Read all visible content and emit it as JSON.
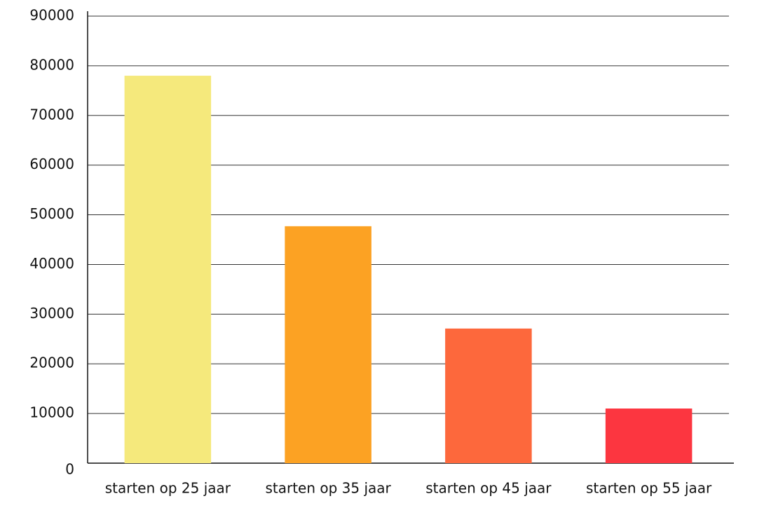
{
  "chart_data": {
    "type": "bar",
    "categories": [
      "starten op 25 jaar",
      "starten op 35 jaar",
      "starten op 45 jaar",
      "starten op 55 jaar"
    ],
    "values": [
      78000,
      47700,
      27100,
      11000
    ],
    "colors": [
      "#f5e97c",
      "#fca223",
      "#fd683c",
      "#fc3640"
    ],
    "ylim": [
      0,
      90000
    ],
    "yticks": [
      0,
      10000,
      20000,
      30000,
      40000,
      50000,
      60000,
      70000,
      80000,
      90000
    ],
    "grid": true
  }
}
